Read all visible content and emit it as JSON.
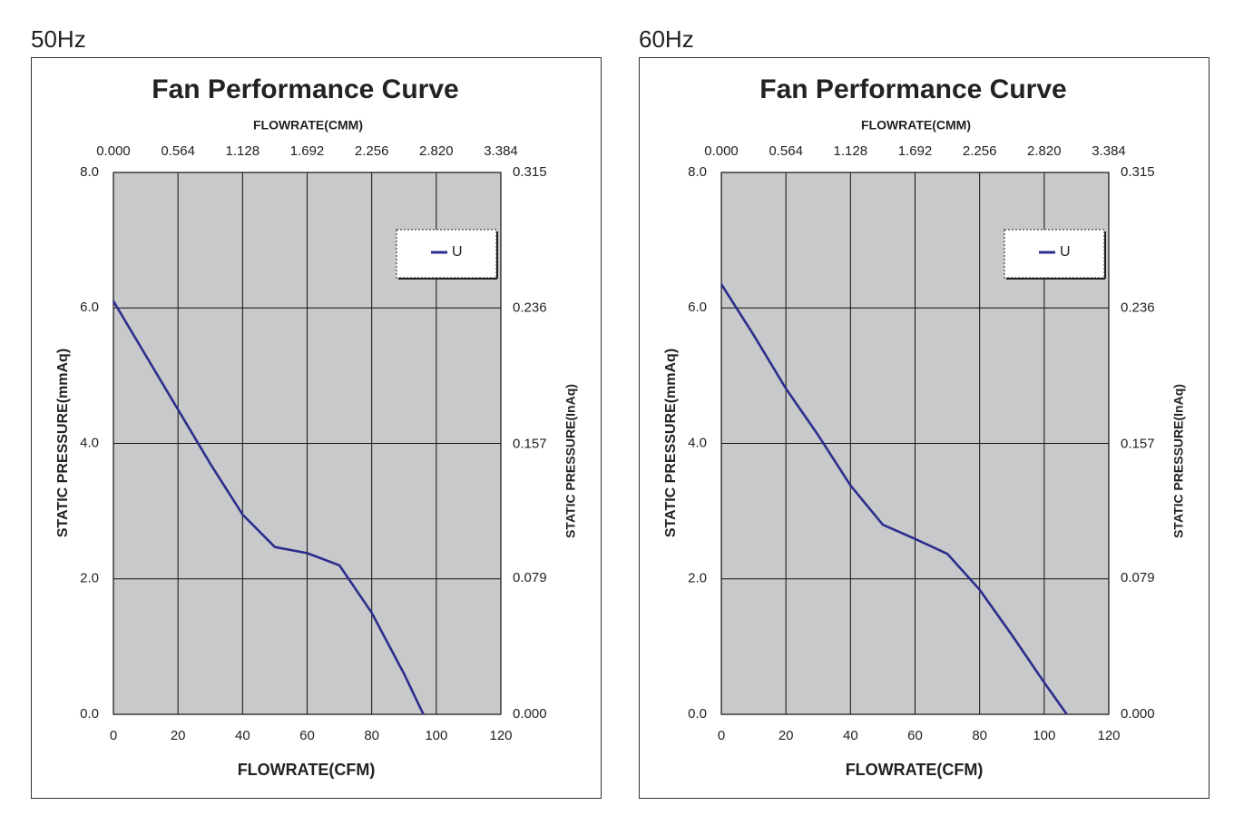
{
  "chart_data": [
    {
      "type": "line",
      "heading": "50Hz",
      "title": "Fan Performance Curve",
      "x_label": "FLOWRATE(CFM)",
      "x2_label": "FLOWRATE(CMM)",
      "y_label": "STATIC PRESSURE(mmAq)",
      "y2_label": "STATIC PRESSURE(InAq)",
      "xlim": [
        0,
        120
      ],
      "xticks": [
        0,
        20,
        40,
        60,
        80,
        100,
        120
      ],
      "x2lim": [
        0,
        3.384
      ],
      "x2ticks": [
        {
          "value": 0,
          "label": "0.000"
        },
        0.564,
        1.128,
        1.692,
        2.256,
        {
          "value": 2.82,
          "label": "2.820"
        },
        3.384
      ],
      "ylim": [
        0,
        8
      ],
      "yticks": [
        {
          "value": 0,
          "label": "0.0"
        },
        {
          "value": 2,
          "label": "2.0"
        },
        {
          "value": 4,
          "label": "4.0"
        },
        {
          "value": 6,
          "label": "6.0"
        },
        {
          "value": 8,
          "label": "8.0"
        }
      ],
      "y2lim": [
        0,
        0.315
      ],
      "y2ticks": [
        {
          "value": 0,
          "label": "0.000"
        },
        0.079,
        0.157,
        0.236,
        0.315
      ],
      "grid": true,
      "legend": "upper right",
      "x": [
        0,
        10,
        20,
        30,
        40,
        50,
        60,
        70,
        80,
        90,
        96
      ],
      "series": [
        {
          "name": "U",
          "color": "#2b2e8c",
          "values": [
            6.1,
            5.3,
            4.5,
            3.7,
            2.95,
            2.47,
            2.38,
            2.2,
            1.5,
            0.6,
            0
          ]
        }
      ]
    },
    {
      "type": "line",
      "heading": "60Hz",
      "title": "Fan Performance Curve",
      "x_label": "FLOWRATE(CFM)",
      "x2_label": "FLOWRATE(CMM)",
      "y_label": "STATIC PRESSURE(mmAq)",
      "y2_label": "STATIC PRESSURE(InAq)",
      "xlim": [
        0,
        120
      ],
      "xticks": [
        0,
        20,
        40,
        60,
        80,
        100,
        120
      ],
      "x2lim": [
        0,
        3.384
      ],
      "x2ticks": [
        {
          "value": 0,
          "label": "0.000"
        },
        0.564,
        1.128,
        1.692,
        2.256,
        {
          "value": 2.82,
          "label": "2.820"
        },
        3.384
      ],
      "ylim": [
        0,
        8
      ],
      "yticks": [
        {
          "value": 0,
          "label": "0.0"
        },
        {
          "value": 2,
          "label": "2.0"
        },
        {
          "value": 4,
          "label": "4.0"
        },
        {
          "value": 6,
          "label": "6.0"
        },
        {
          "value": 8,
          "label": "8.0"
        }
      ],
      "y2lim": [
        0,
        0.315
      ],
      "y2ticks": [
        {
          "value": 0,
          "label": "0.000"
        },
        0.079,
        0.157,
        0.236,
        0.315
      ],
      "grid": true,
      "legend": "upper right",
      "x": [
        0,
        10,
        20,
        30,
        40,
        50,
        60,
        70,
        80,
        90,
        100,
        107
      ],
      "series": [
        {
          "name": "U",
          "color": "#2b2e8c",
          "values": [
            6.35,
            5.6,
            4.81,
            4.12,
            3.38,
            2.8,
            2.59,
            2.37,
            1.84,
            1.17,
            0.47,
            0
          ]
        }
      ]
    }
  ]
}
